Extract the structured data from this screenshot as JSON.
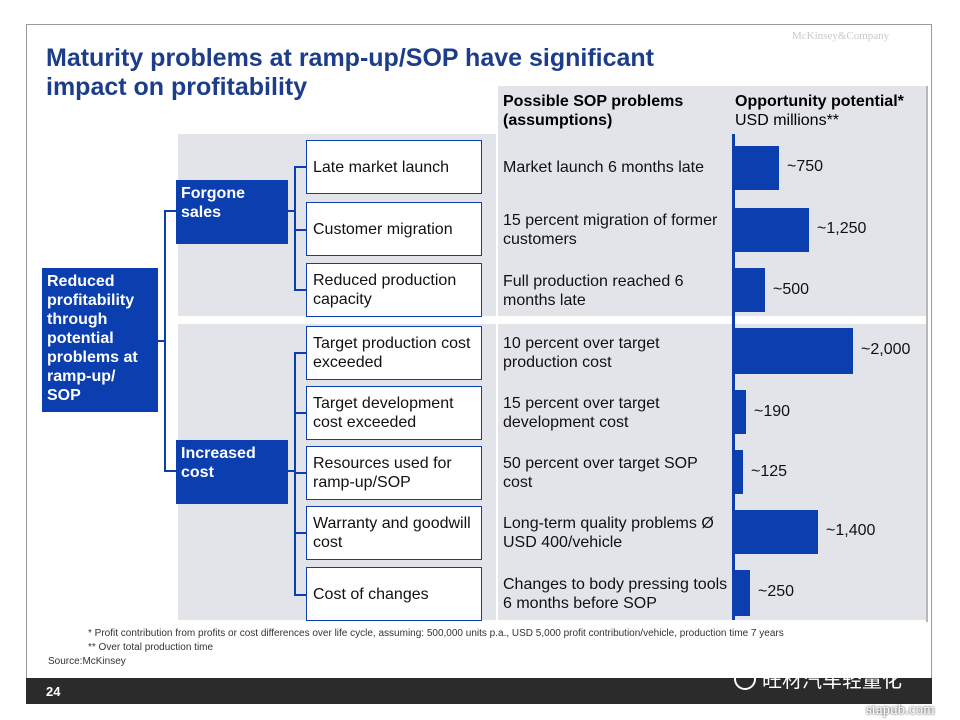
{
  "brand": "McKinsey&Company",
  "title": "Maturity problems at ramp-up/SOP have significant impact on profitability",
  "headers": {
    "problems": "Possible SOP problems (assumptions)",
    "potential_main": "Opportunity potential*",
    "potential_sub": "USD millions**"
  },
  "root": "Reduced profitability through potential problems at ramp-up/ SOP",
  "groups": [
    {
      "label": "Forgone sales"
    },
    {
      "label": "Increased cost"
    }
  ],
  "rows": [
    {
      "item": "Late market launch",
      "problem": "Market launch 6 months late",
      "value": 750,
      "value_label": "~750"
    },
    {
      "item": "Customer migration",
      "problem": "15 percent migration of former customers",
      "value": 1250,
      "value_label": "~1,250"
    },
    {
      "item": "Reduced production capacity",
      "problem": "Full production reached 6 months late",
      "value": 500,
      "value_label": "~500"
    },
    {
      "item": "Target production cost exceeded",
      "problem": "10 percent over target production cost",
      "value": 2000,
      "value_label": "~2,000"
    },
    {
      "item": "Target development cost exceeded",
      "problem": "15 percent over target development cost",
      "value": 190,
      "value_label": "~190"
    },
    {
      "item": "Resources used for ramp-up/SOP",
      "problem": "50 percent over target SOP cost",
      "value": 125,
      "value_label": "~125"
    },
    {
      "item": "Warranty and goodwill cost",
      "problem": "Long-term quality problems Ø USD 400/vehicle",
      "value": 1400,
      "value_label": "~1,400"
    },
    {
      "item": "Cost of changes",
      "problem": "Changes to body pressing tools 6 months before SOP",
      "value": 250,
      "value_label": "~250"
    }
  ],
  "footnotes": {
    "f1": "* Profit contribution from profits or cost differences over life cycle, assuming: 500,000 units p.a., USD 5,000 profit contribution/vehicle, production time 7 years",
    "f2": "** Over total production time",
    "source": "Source:McKinsey"
  },
  "page_number": "24",
  "watermark": "旺材汽车轻量化",
  "site": "stapub.com",
  "colors": {
    "accent": "#0b3fb0",
    "title": "#1c3d8a",
    "band": "#e2e4ea"
  }
}
